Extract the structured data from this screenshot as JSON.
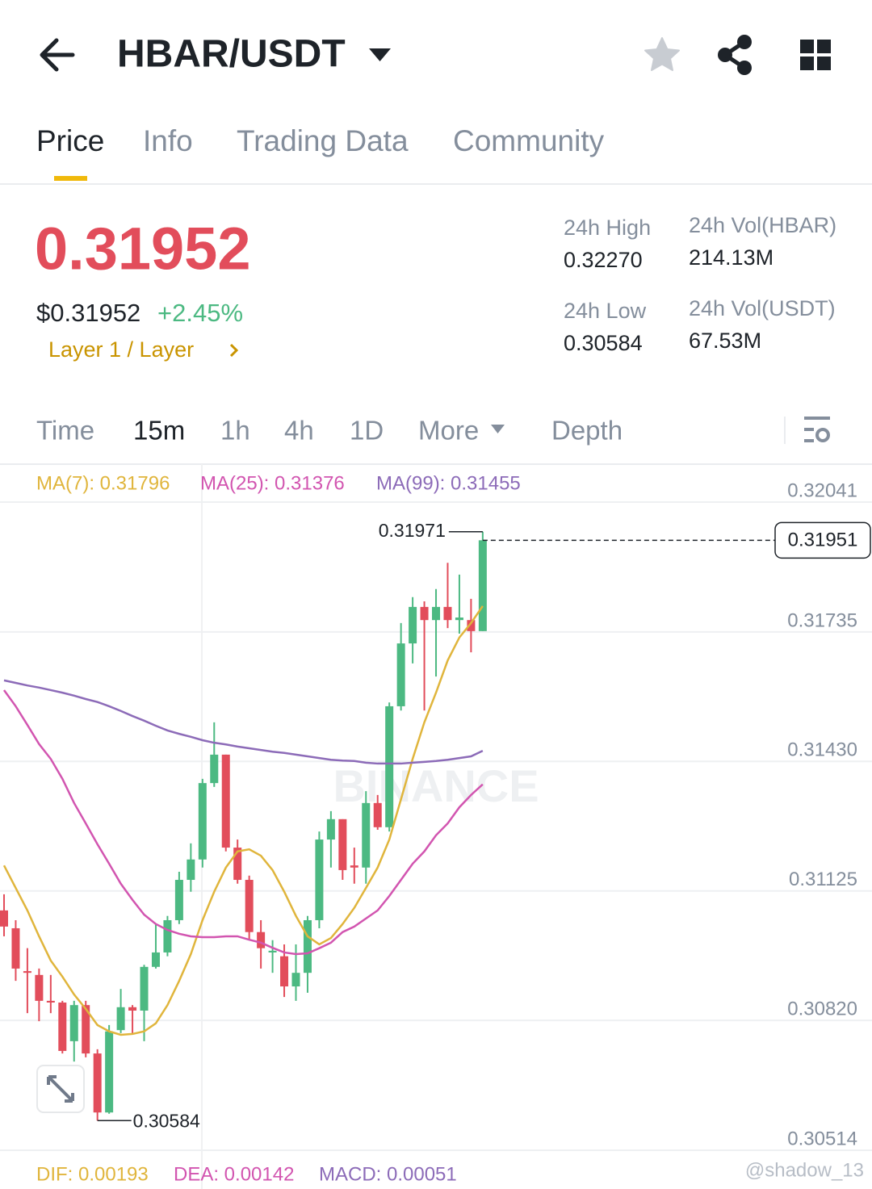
{
  "header": {
    "title": "HBAR/USDT"
  },
  "tabs": [
    "Price",
    "Info",
    "Trading Data",
    "Community"
  ],
  "price": {
    "last": "0.31952",
    "usd": "$0.31952",
    "change": "+2.45%",
    "tag": "Layer 1 / Layer"
  },
  "stats": [
    {
      "label": "24h High",
      "value": "0.32270"
    },
    {
      "label": "24h Vol(HBAR)",
      "value": "214.13M"
    },
    {
      "label": "24h Low",
      "value": "0.30584"
    },
    {
      "label": "24h Vol(USDT)",
      "value": "67.53M"
    }
  ],
  "intervals": [
    "Time",
    "15m",
    "1h",
    "4h",
    "1D",
    "More",
    "Depth"
  ],
  "macd_labels": [
    {
      "text": "DIF: 0.00193",
      "color": "#e0b53c"
    },
    {
      "text": "DEA: 0.00142",
      "color": "#d255b0"
    },
    {
      "text": "MACD: 0.00051",
      "color": "#8c6bb8"
    }
  ],
  "watermark": "@shadow_13",
  "chart_data": {
    "type": "candlestick",
    "watermark": "BINANCE",
    "up_color": "#4cb982",
    "down_color": "#e24d5b",
    "grid": true,
    "ylim": [
      0.30514,
      0.32041
    ],
    "yticks": [
      0.32041,
      0.31735,
      {
        "value": 0.3143,
        "label": "0.31430"
      },
      0.31125,
      {
        "value": 0.3082,
        "label": "0.30820"
      },
      0.30514
    ],
    "candles": {
      "open": [
        0.31079,
        0.31037,
        0.30936,
        0.30927,
        0.30866,
        0.30862,
        0.30771,
        0.30856,
        0.30742,
        0.30603,
        0.30797,
        0.30851,
        0.30843,
        0.30946,
        0.3098,
        0.31056,
        0.31151,
        0.31199,
        0.31379,
        0.31446,
        0.31227,
        0.31151,
        0.31028,
        0.3098,
        0.30971,
        0.309,
        0.30932,
        0.31056,
        0.31246,
        0.31294,
        0.31185,
        0.3118,
        0.31332,
        0.31275,
        0.3156,
        0.31708,
        0.31794,
        0.31763,
        0.31794,
        0.31763,
        0.31763,
        0.31737
      ],
      "high": [
        0.31117,
        0.31056,
        0.3099,
        0.30942,
        0.30927,
        0.30866,
        0.30866,
        0.30866,
        0.30752,
        0.30809,
        0.30894,
        0.30856,
        0.30951,
        0.31047,
        0.31066,
        0.3117,
        0.31237,
        0.31389,
        0.31522,
        0.31446,
        0.31246,
        0.31161,
        0.31056,
        0.31009,
        0.30999,
        0.30999,
        0.31066,
        0.31265,
        0.31313,
        0.31294,
        0.31227,
        0.3136,
        0.31351,
        0.31569,
        0.31756,
        0.31817,
        0.31807,
        0.31836,
        0.31898,
        0.3187,
        0.31813,
        0.31971
      ],
      "low": [
        0.31018,
        0.30913,
        0.30837,
        0.30818,
        0.30837,
        0.30742,
        0.30723,
        0.30733,
        0.30584,
        0.306,
        0.3079,
        0.3079,
        0.30771,
        0.30942,
        0.30971,
        0.31047,
        0.31123,
        0.3118,
        0.3137,
        0.31218,
        0.31142,
        0.31009,
        0.30942,
        0.30932,
        0.30875,
        0.30866,
        0.30885,
        0.31037,
        0.3118,
        0.31151,
        0.31142,
        0.31142,
        0.31269,
        0.31265,
        0.3155,
        0.31661,
        0.3155,
        0.3163,
        0.31744,
        0.31731,
        0.31687,
        0.31737
      ],
      "close": [
        0.31041,
        0.30942,
        0.30932,
        0.30866,
        0.30862,
        0.30748,
        0.30856,
        0.30742,
        0.30603,
        0.30794,
        0.30851,
        0.30843,
        0.30946,
        0.3098,
        0.31056,
        0.31151,
        0.31199,
        0.31379,
        0.31446,
        0.31227,
        0.31151,
        0.31028,
        0.3099,
        0.30984,
        0.309,
        0.30932,
        0.31056,
        0.31246,
        0.31294,
        0.31174,
        0.3118,
        0.31332,
        0.31275,
        0.3156,
        0.31708,
        0.31794,
        0.31763,
        0.31794,
        0.31763,
        0.31769,
        0.31737,
        0.31951
      ]
    },
    "series": [
      {
        "name": "MA(7): 0.31796",
        "color": "#e0b53c",
        "values": [
          0.31185,
          0.31132,
          0.31079,
          0.31018,
          0.30961,
          0.30923,
          0.30881,
          0.30847,
          0.30809,
          0.30794,
          0.30786,
          0.30788,
          0.30794,
          0.30813,
          0.30856,
          0.30913,
          0.30976,
          0.31056,
          0.31123,
          0.3118,
          0.31218,
          0.31223,
          0.31208,
          0.31174,
          0.31123,
          0.31066,
          0.31018,
          0.30999,
          0.31014,
          0.31047,
          0.31085,
          0.31132,
          0.3118,
          0.31246,
          0.31341,
          0.31436,
          0.31522,
          0.31592,
          0.31668,
          0.31722,
          0.31756,
          0.31796
        ]
      },
      {
        "name": "MA(25): 0.31376",
        "color": "#d255b0",
        "values": [
          0.31598,
          0.3156,
          0.31516,
          0.31471,
          0.31436,
          0.31389,
          0.31332,
          0.31284,
          0.31235,
          0.31189,
          0.31142,
          0.31104,
          0.31069,
          0.31047,
          0.31033,
          0.31024,
          0.31018,
          0.31016,
          0.31016,
          0.31018,
          0.31018,
          0.3101,
          0.31003,
          0.30991,
          0.3098,
          0.30976,
          0.30978,
          0.3099,
          0.31003,
          0.31028,
          0.31041,
          0.3106,
          0.31079,
          0.31113,
          0.31151,
          0.31189,
          0.31218,
          0.31256,
          0.31284,
          0.31322,
          0.31351,
          0.31376
        ]
      },
      {
        "name": "MA(99): 0.31455",
        "color": "#8c6bb8",
        "values": [
          0.31621,
          0.31615,
          0.31609,
          0.31604,
          0.31598,
          0.31592,
          0.31585,
          0.31577,
          0.3157,
          0.3156,
          0.31549,
          0.31537,
          0.31526,
          0.31514,
          0.31503,
          0.31495,
          0.31488,
          0.3148,
          0.31474,
          0.3147,
          0.31465,
          0.31461,
          0.31457,
          0.31453,
          0.3145,
          0.31446,
          0.31442,
          0.31438,
          0.31434,
          0.31432,
          0.31431,
          0.31427,
          0.31425,
          0.31425,
          0.31425,
          0.31427,
          0.31429,
          0.31431,
          0.31434,
          0.31438,
          0.31442,
          0.31455
        ]
      }
    ]
  }
}
